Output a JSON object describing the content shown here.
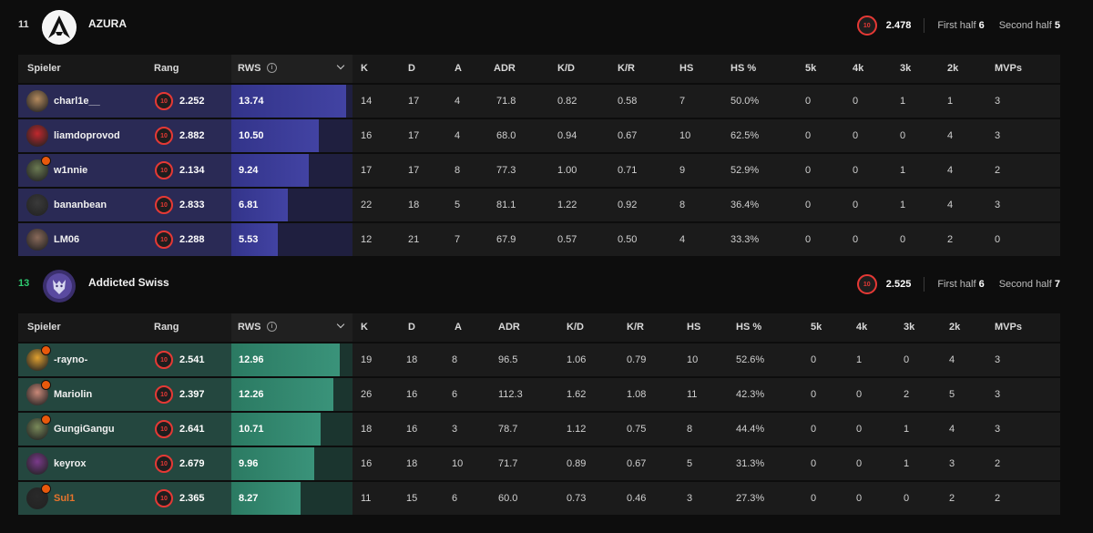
{
  "columns": [
    "Spieler",
    "Rang",
    "RWS",
    "K",
    "D",
    "A",
    "ADR",
    "K/D",
    "K/R",
    "HS",
    "HS %",
    "5k",
    "4k",
    "3k",
    "2k",
    "MVPs"
  ],
  "rank_level": "10",
  "info_glyph": "i",
  "colors": {
    "team1_accent": "#3b3c9a",
    "team2_accent": "#338a6f",
    "rank_red": "#e53935",
    "party_orange": "#e8590c",
    "win_green": "#2ecc71"
  },
  "teams": [
    {
      "score": "11",
      "name": "AZURA",
      "logo_icon": "azura-a-logo",
      "avg_rank": "2.478",
      "first_half_label": "First half",
      "first_half": "6",
      "second_half_label": "Second half",
      "second_half": "5",
      "players": [
        {
          "name": "charl1e__",
          "rank": "2.252",
          "rws": 13.74,
          "rws_text": "13.74",
          "k": "14",
          "d": "17",
          "a": "4",
          "adr": "71.8",
          "kd": "0.82",
          "kr": "0.58",
          "hs": "7",
          "hsp": "50.0%",
          "k5": "0",
          "k4": "0",
          "k3": "1",
          "k2": "1",
          "mvps": "3",
          "party": false,
          "avatar_color": "#b58b5e"
        },
        {
          "name": "liamdoprovod",
          "rank": "2.882",
          "rws": 10.5,
          "rws_text": "10.50",
          "k": "16",
          "d": "17",
          "a": "4",
          "adr": "68.0",
          "kd": "0.94",
          "kr": "0.67",
          "hs": "10",
          "hsp": "62.5%",
          "k5": "0",
          "k4": "0",
          "k3": "0",
          "k2": "4",
          "mvps": "3",
          "party": false,
          "avatar_color": "#c0282d"
        },
        {
          "name": "w1nnie",
          "rank": "2.134",
          "rws": 9.24,
          "rws_text": "9.24",
          "k": "17",
          "d": "17",
          "a": "8",
          "adr": "77.3",
          "kd": "1.00",
          "kr": "0.71",
          "hs": "9",
          "hsp": "52.9%",
          "k5": "0",
          "k4": "0",
          "k3": "1",
          "k2": "4",
          "mvps": "2",
          "party": true,
          "avatar_color": "#6b7a52"
        },
        {
          "name": "bananbean",
          "rank": "2.833",
          "rws": 6.81,
          "rws_text": "6.81",
          "k": "22",
          "d": "18",
          "a": "5",
          "adr": "81.1",
          "kd": "1.22",
          "kr": "0.92",
          "hs": "8",
          "hsp": "36.4%",
          "k5": "0",
          "k4": "0",
          "k3": "1",
          "k2": "4",
          "mvps": "3",
          "party": false,
          "avatar_color": "#3a3a3a"
        },
        {
          "name": "LM06",
          "rank": "2.288",
          "rws": 5.53,
          "rws_text": "5.53",
          "k": "12",
          "d": "21",
          "a": "7",
          "adr": "67.9",
          "kd": "0.57",
          "kr": "0.50",
          "hs": "4",
          "hsp": "33.3%",
          "k5": "0",
          "k4": "0",
          "k3": "0",
          "k2": "2",
          "mvps": "0",
          "party": false,
          "avatar_color": "#8a6a5a"
        }
      ]
    },
    {
      "score": "13",
      "name": "Addicted Swiss",
      "logo_icon": "addicted-swiss-wolf-logo",
      "avg_rank": "2.525",
      "first_half_label": "First half",
      "first_half": "6",
      "second_half_label": "Second half",
      "second_half": "7",
      "players": [
        {
          "name": "-rayno-",
          "rank": "2.541",
          "rws": 12.96,
          "rws_text": "12.96",
          "k": "19",
          "d": "18",
          "a": "8",
          "adr": "96.5",
          "kd": "1.06",
          "kr": "0.79",
          "hs": "10",
          "hsp": "52.6%",
          "k5": "0",
          "k4": "1",
          "k3": "0",
          "k2": "4",
          "mvps": "3",
          "party": true,
          "avatar_color": "#e0a030"
        },
        {
          "name": "Mariolin",
          "rank": "2.397",
          "rws": 12.26,
          "rws_text": "12.26",
          "k": "26",
          "d": "16",
          "a": "6",
          "adr": "112.3",
          "kd": "1.62",
          "kr": "1.08",
          "hs": "11",
          "hsp": "42.3%",
          "k5": "0",
          "k4": "0",
          "k3": "2",
          "k2": "5",
          "mvps": "3",
          "party": true,
          "avatar_color": "#c98878"
        },
        {
          "name": "GungiGangu",
          "rank": "2.641",
          "rws": 10.71,
          "rws_text": "10.71",
          "k": "18",
          "d": "16",
          "a": "3",
          "adr": "78.7",
          "kd": "1.12",
          "kr": "0.75",
          "hs": "8",
          "hsp": "44.4%",
          "k5": "0",
          "k4": "0",
          "k3": "1",
          "k2": "4",
          "mvps": "3",
          "party": true,
          "avatar_color": "#7a8a5a"
        },
        {
          "name": "keyrox",
          "rank": "2.679",
          "rws": 9.96,
          "rws_text": "9.96",
          "k": "16",
          "d": "18",
          "a": "10",
          "adr": "71.7",
          "kd": "0.89",
          "kr": "0.67",
          "hs": "5",
          "hsp": "31.3%",
          "k5": "0",
          "k4": "0",
          "k3": "1",
          "k2": "3",
          "mvps": "2",
          "party": false,
          "avatar_color": "#7a3a8a"
        },
        {
          "name": "Sul1",
          "rank": "2.365",
          "rws": 8.27,
          "rws_text": "8.27",
          "k": "11",
          "d": "15",
          "a": "6",
          "adr": "60.0",
          "kd": "0.73",
          "kr": "0.46",
          "hs": "3",
          "hsp": "27.3%",
          "k5": "0",
          "k4": "0",
          "k3": "0",
          "k2": "2",
          "mvps": "2",
          "party": true,
          "avatar_color": "#2a2a2a"
        }
      ]
    }
  ]
}
